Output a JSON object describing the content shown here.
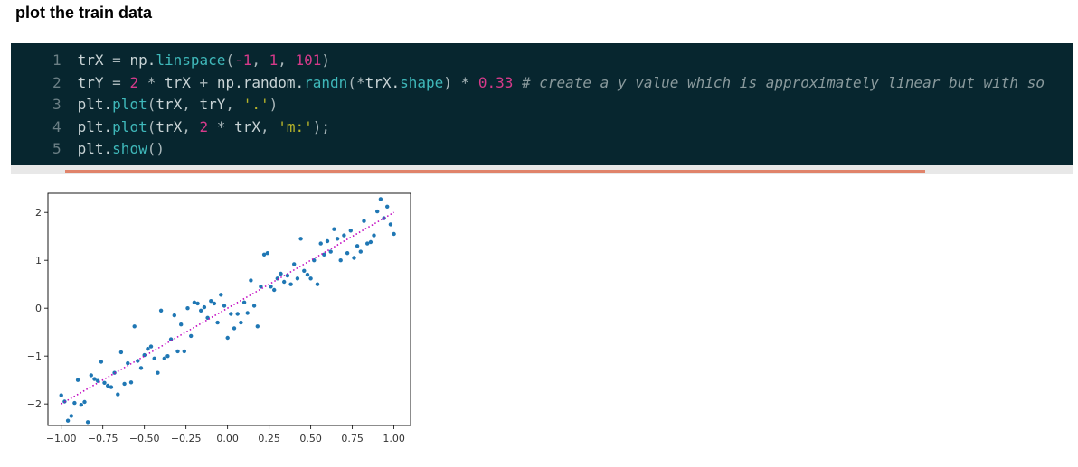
{
  "heading": "plot the train data",
  "code": {
    "lines": [
      {
        "num": "1",
        "tokens": [
          {
            "t": "var",
            "v": "trX"
          },
          {
            "t": "op",
            "v": " = "
          },
          {
            "t": "var",
            "v": "np."
          },
          {
            "t": "fn",
            "v": "linspace"
          },
          {
            "t": "op",
            "v": "("
          },
          {
            "t": "num",
            "v": "-1"
          },
          {
            "t": "op",
            "v": ", "
          },
          {
            "t": "num",
            "v": "1"
          },
          {
            "t": "op",
            "v": ", "
          },
          {
            "t": "num",
            "v": "101"
          },
          {
            "t": "op",
            "v": ")"
          }
        ]
      },
      {
        "num": "2",
        "tokens": [
          {
            "t": "var",
            "v": "trY"
          },
          {
            "t": "op",
            "v": " = "
          },
          {
            "t": "num",
            "v": "2"
          },
          {
            "t": "op",
            "v": " * "
          },
          {
            "t": "var",
            "v": "trX"
          },
          {
            "t": "op",
            "v": " + "
          },
          {
            "t": "var",
            "v": "np.random."
          },
          {
            "t": "fn",
            "v": "randn"
          },
          {
            "t": "op",
            "v": "(*"
          },
          {
            "t": "var",
            "v": "trX."
          },
          {
            "t": "fn",
            "v": "shape"
          },
          {
            "t": "op",
            "v": ") * "
          },
          {
            "t": "num",
            "v": "0.33"
          },
          {
            "t": "op",
            "v": " "
          },
          {
            "t": "cmt",
            "v": "# create a y value which is approximately linear but with so"
          }
        ]
      },
      {
        "num": "3",
        "tokens": [
          {
            "t": "var",
            "v": "plt."
          },
          {
            "t": "fn",
            "v": "plot"
          },
          {
            "t": "op",
            "v": "("
          },
          {
            "t": "var",
            "v": "trX"
          },
          {
            "t": "op",
            "v": ", "
          },
          {
            "t": "var",
            "v": "trY"
          },
          {
            "t": "op",
            "v": ", "
          },
          {
            "t": "str",
            "v": "'.'"
          },
          {
            "t": "op",
            "v": ")"
          }
        ]
      },
      {
        "num": "4",
        "tokens": [
          {
            "t": "var",
            "v": "plt."
          },
          {
            "t": "fn",
            "v": "plot"
          },
          {
            "t": "op",
            "v": "("
          },
          {
            "t": "var",
            "v": "trX"
          },
          {
            "t": "op",
            "v": ", "
          },
          {
            "t": "num",
            "v": "2"
          },
          {
            "t": "op",
            "v": " * "
          },
          {
            "t": "var",
            "v": "trX"
          },
          {
            "t": "op",
            "v": ", "
          },
          {
            "t": "str",
            "v": "'m:'"
          },
          {
            "t": "op",
            "v": ");"
          }
        ]
      },
      {
        "num": "5",
        "tokens": [
          {
            "t": "var",
            "v": "plt."
          },
          {
            "t": "fn",
            "v": "show"
          },
          {
            "t": "op",
            "v": "()"
          }
        ]
      }
    ]
  },
  "chart_data": {
    "type": "scatter",
    "xlim": [
      -1.08,
      1.1
    ],
    "ylim": [
      -2.45,
      2.4
    ],
    "xticks": [
      "−1.00",
      "−0.75",
      "−0.50",
      "−0.25",
      "0.00",
      "0.25",
      "0.50",
      "0.75",
      "1.00"
    ],
    "xtick_values": [
      -1.0,
      -0.75,
      -0.5,
      -0.25,
      0.0,
      0.25,
      0.5,
      0.75,
      1.0
    ],
    "yticks": [
      "−2",
      "−1",
      "0",
      "1",
      "2"
    ],
    "ytick_values": [
      -2,
      -1,
      0,
      1,
      2
    ],
    "grid": false,
    "series": [
      {
        "style": "points",
        "color": "#1f77b4",
        "x": [
          -1.0,
          -0.98,
          -0.96,
          -0.94,
          -0.92,
          -0.9,
          -0.88,
          -0.86,
          -0.84,
          -0.82,
          -0.8,
          -0.78,
          -0.76,
          -0.74,
          -0.72,
          -0.7,
          -0.68,
          -0.66,
          -0.64,
          -0.62,
          -0.6,
          -0.58,
          -0.56,
          -0.54,
          -0.52,
          -0.5,
          -0.48,
          -0.46,
          -0.44,
          -0.42,
          -0.4,
          -0.38,
          -0.36,
          -0.34,
          -0.32,
          -0.3,
          -0.28,
          -0.26,
          -0.24,
          -0.22,
          -0.2,
          -0.18,
          -0.16,
          -0.14,
          -0.12,
          -0.1,
          -0.08,
          -0.06,
          -0.04,
          -0.02,
          0.0,
          0.02,
          0.04,
          0.06,
          0.08,
          0.1,
          0.12,
          0.14,
          0.16,
          0.18,
          0.2,
          0.22,
          0.24,
          0.26,
          0.28,
          0.3,
          0.32,
          0.34,
          0.36,
          0.38,
          0.4,
          0.42,
          0.44,
          0.46,
          0.48,
          0.5,
          0.52,
          0.54,
          0.56,
          0.58,
          0.6,
          0.62,
          0.64,
          0.66,
          0.68,
          0.7,
          0.72,
          0.74,
          0.76,
          0.78,
          0.8,
          0.82,
          0.84,
          0.86,
          0.88,
          0.9,
          0.92,
          0.94,
          0.96,
          0.98,
          1.0
        ],
        "y": [
          -1.82,
          -1.95,
          -2.35,
          -2.25,
          -1.98,
          -1.5,
          -2.02,
          -1.96,
          -2.38,
          -1.4,
          -1.48,
          -1.52,
          -1.12,
          -1.56,
          -1.62,
          -1.65,
          -1.35,
          -1.8,
          -0.92,
          -1.58,
          -1.15,
          -1.55,
          -0.38,
          -1.1,
          -1.25,
          -0.98,
          -0.85,
          -0.8,
          -1.05,
          -1.35,
          -0.05,
          -1.05,
          -1.0,
          -0.65,
          -0.15,
          -0.9,
          -0.34,
          -0.9,
          0.0,
          -0.58,
          0.12,
          0.1,
          -0.05,
          0.02,
          -0.2,
          0.15,
          0.1,
          -0.3,
          0.28,
          0.05,
          -0.62,
          -0.12,
          -0.42,
          -0.12,
          -0.3,
          0.12,
          -0.1,
          0.58,
          0.05,
          -0.38,
          0.45,
          1.12,
          1.15,
          0.45,
          0.38,
          0.62,
          0.72,
          0.55,
          0.68,
          0.5,
          0.92,
          0.62,
          1.45,
          0.78,
          0.7,
          0.62,
          1.0,
          0.5,
          1.35,
          1.12,
          1.4,
          1.18,
          1.65,
          1.45,
          1.0,
          1.52,
          1.15,
          1.62,
          1.05,
          1.3,
          1.18,
          1.82,
          1.35,
          1.38,
          1.52,
          2.02,
          2.28,
          1.88,
          2.12,
          1.75,
          1.55
        ]
      },
      {
        "style": "dotted-line",
        "color": "#bf00bf",
        "x": [
          -1.0,
          1.0
        ],
        "y": [
          -2.0,
          2.0
        ]
      }
    ]
  }
}
